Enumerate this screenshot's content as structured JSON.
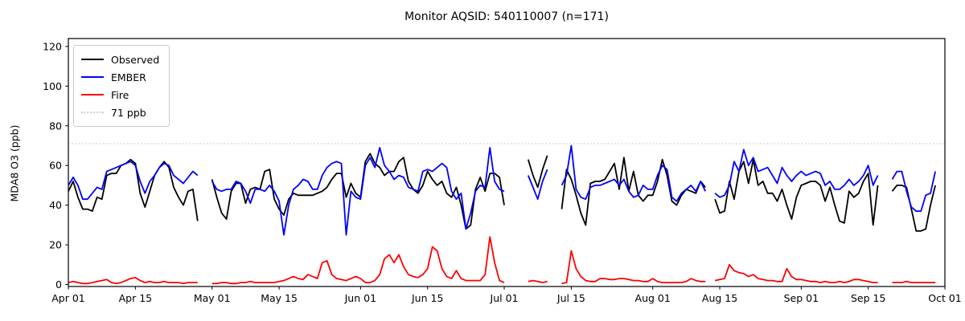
{
  "figure": {
    "title": "Monitor AQSID: 540110007 (n=171)",
    "ylabel": "MDA8 O3 (ppb)"
  },
  "legend": {
    "items": [
      {
        "label": "Observed",
        "color": "#000000",
        "style": "solid"
      },
      {
        "label": "EMBER",
        "color": "#0000ff",
        "style": "solid"
      },
      {
        "label": "Fire",
        "color": "#ff0000",
        "style": "solid"
      },
      {
        "label": "71 ppb",
        "color": "#d3d3d3",
        "style": "dotted"
      }
    ]
  },
  "chart_data": {
    "type": "line",
    "title": "Monitor AQSID: 540110007 (n=171)",
    "xlabel": "",
    "ylabel": "MDA8 O3 (ppb)",
    "n_points": 171,
    "x_start": "Apr 01",
    "x_end": "Oct 01",
    "x_days_total": 184,
    "ylim": [
      -1,
      124
    ],
    "grid": false,
    "legend_position": "upper left",
    "y_ticks": [
      {
        "value": 0,
        "label": "0"
      },
      {
        "value": 20,
        "label": "20"
      },
      {
        "value": 40,
        "label": "40"
      },
      {
        "value": 60,
        "label": "60"
      },
      {
        "value": 80,
        "label": "80"
      },
      {
        "value": 100,
        "label": "100"
      },
      {
        "value": 120,
        "label": "120"
      }
    ],
    "x_ticks": [
      {
        "day": 0,
        "label": "Apr 01"
      },
      {
        "day": 14,
        "label": "Apr 15"
      },
      {
        "day": 30,
        "label": "May 01"
      },
      {
        "day": 44,
        "label": "May 15"
      },
      {
        "day": 61,
        "label": "Jun 01"
      },
      {
        "day": 75,
        "label": "Jun 15"
      },
      {
        "day": 91,
        "label": "Jul 01"
      },
      {
        "day": 105,
        "label": "Jul 15"
      },
      {
        "day": 122,
        "label": "Aug 01"
      },
      {
        "day": 136,
        "label": "Aug 15"
      },
      {
        "day": 153,
        "label": "Sep 01"
      },
      {
        "day": 167,
        "label": "Sep 15"
      },
      {
        "day": 183,
        "label": "Oct 01"
      }
    ],
    "threshold": {
      "value": 71,
      "label": "71 ppb",
      "color": "#d3d3d3",
      "style": "dotted"
    },
    "series": [
      {
        "name": "Observed",
        "color": "#000000",
        "values": [
          47,
          52,
          44,
          38,
          38,
          37,
          44,
          43,
          55,
          56,
          56,
          60,
          61,
          63,
          61,
          46,
          39,
          47,
          55,
          59,
          62,
          59,
          49,
          44,
          40,
          47,
          48,
          32,
          null,
          null,
          53,
          44,
          36,
          33,
          47,
          51,
          51,
          41,
          48,
          49,
          48,
          57,
          58,
          43,
          38,
          35,
          43,
          46,
          45,
          45,
          45,
          45,
          46,
          47,
          49,
          53,
          56,
          56,
          44,
          51,
          46,
          44,
          62,
          66,
          61,
          59,
          55,
          57,
          57,
          62,
          64,
          52,
          48,
          46,
          50,
          57,
          53,
          50,
          52,
          46,
          44,
          49,
          40,
          28,
          30,
          48,
          54,
          47,
          56,
          56,
          54,
          40,
          null,
          null,
          null,
          null,
          63,
          55,
          49,
          58,
          65,
          null,
          null,
          38,
          58,
          53,
          45,
          36,
          30,
          51,
          52,
          52,
          53,
          57,
          61,
          48,
          64,
          47,
          57,
          45,
          42,
          45,
          45,
          52,
          63,
          55,
          42,
          40,
          45,
          48,
          47,
          46,
          52,
          49,
          null,
          43,
          36,
          37,
          52,
          43,
          57,
          62,
          51,
          63,
          50,
          52,
          46,
          46,
          42,
          48,
          40,
          33,
          44,
          50,
          51,
          52,
          52,
          50,
          42,
          49,
          40,
          32,
          31,
          47,
          44,
          46,
          52,
          56,
          30,
          50,
          null,
          null,
          47,
          50,
          50,
          49,
          38,
          27,
          27,
          28,
          40,
          50,
          null,
          null
        ]
      },
      {
        "name": "EMBER",
        "color": "#0000ff",
        "values": [
          50,
          54,
          50,
          43,
          43,
          46,
          49,
          48,
          57,
          58,
          59,
          60,
          61,
          62,
          60,
          52,
          46,
          52,
          55,
          59,
          61,
          60,
          55,
          53,
          51,
          54,
          57,
          55,
          null,
          null,
          52,
          48,
          47,
          48,
          48,
          52,
          51,
          47,
          41,
          48,
          48,
          47,
          50,
          47,
          42,
          25,
          40,
          48,
          50,
          53,
          52,
          48,
          48,
          55,
          59,
          61,
          62,
          61,
          25,
          47,
          44,
          43,
          60,
          64,
          59,
          69,
          60,
          57,
          53,
          55,
          54,
          49,
          48,
          47,
          57,
          58,
          57,
          59,
          61,
          59,
          47,
          43,
          46,
          28,
          36,
          47,
          50,
          49,
          69,
          52,
          48,
          47,
          null,
          null,
          null,
          null,
          55,
          49,
          43,
          52,
          58,
          null,
          null,
          50,
          55,
          70,
          48,
          44,
          43,
          49,
          50,
          50,
          51,
          52,
          53,
          50,
          53,
          47,
          44,
          45,
          50,
          48,
          48,
          55,
          60,
          58,
          44,
          42,
          46,
          48,
          50,
          47,
          52,
          47,
          null,
          46,
          44,
          45,
          50,
          62,
          57,
          68,
          60,
          64,
          57,
          58,
          59,
          55,
          51,
          59,
          55,
          52,
          55,
          57,
          55,
          56,
          57,
          56,
          50,
          52,
          48,
          48,
          50,
          53,
          50,
          52,
          55,
          60,
          50,
          55,
          null,
          null,
          53,
          57,
          57,
          47,
          39,
          37,
          37,
          45,
          46,
          57,
          null,
          null
        ]
      },
      {
        "name": "Fire",
        "color": "#ff0000",
        "values": [
          1,
          1.5,
          1,
          0.5,
          0.5,
          1,
          1.5,
          2,
          2.5,
          1,
          0.5,
          1,
          2,
          3,
          3.5,
          2,
          1,
          1.5,
          1,
          1,
          1.5,
          1,
          1,
          1,
          0.5,
          1,
          1,
          1,
          null,
          null,
          0.5,
          0.5,
          1,
          1,
          0.5,
          0.5,
          1,
          1,
          1.5,
          1,
          1,
          1,
          1,
          1,
          1.5,
          2,
          3,
          4,
          3,
          2.5,
          5,
          4,
          3,
          11,
          12,
          5,
          3,
          2.5,
          2,
          3,
          4,
          3,
          1,
          1,
          2,
          5,
          13,
          15,
          11,
          15,
          9,
          5,
          4,
          3.5,
          5,
          8,
          19,
          17,
          8,
          4,
          3,
          7,
          3,
          2,
          2,
          2,
          2,
          5,
          24,
          11,
          2,
          1,
          null,
          null,
          null,
          null,
          1.5,
          2,
          1.5,
          1,
          1.5,
          null,
          null,
          0.5,
          1,
          17,
          8,
          4,
          2,
          1.5,
          1.5,
          3,
          3,
          2.5,
          2.5,
          3,
          3,
          2.5,
          2,
          2,
          1.5,
          1.5,
          3,
          1.5,
          1,
          1,
          1,
          1,
          1,
          1.5,
          3,
          2,
          1.5,
          1.5,
          null,
          2,
          2.5,
          3,
          10,
          7,
          6,
          5.5,
          4,
          5,
          3,
          2.5,
          2,
          2,
          1.5,
          1.5,
          8,
          4,
          2.5,
          2.5,
          2,
          1.5,
          1.5,
          1,
          1.5,
          1,
          1,
          1.5,
          1,
          1.5,
          2.5,
          2.5,
          2,
          1.5,
          1,
          1,
          null,
          null,
          1,
          1,
          1,
          1.5,
          1,
          1,
          1,
          1,
          1,
          1,
          null,
          null
        ]
      }
    ]
  }
}
